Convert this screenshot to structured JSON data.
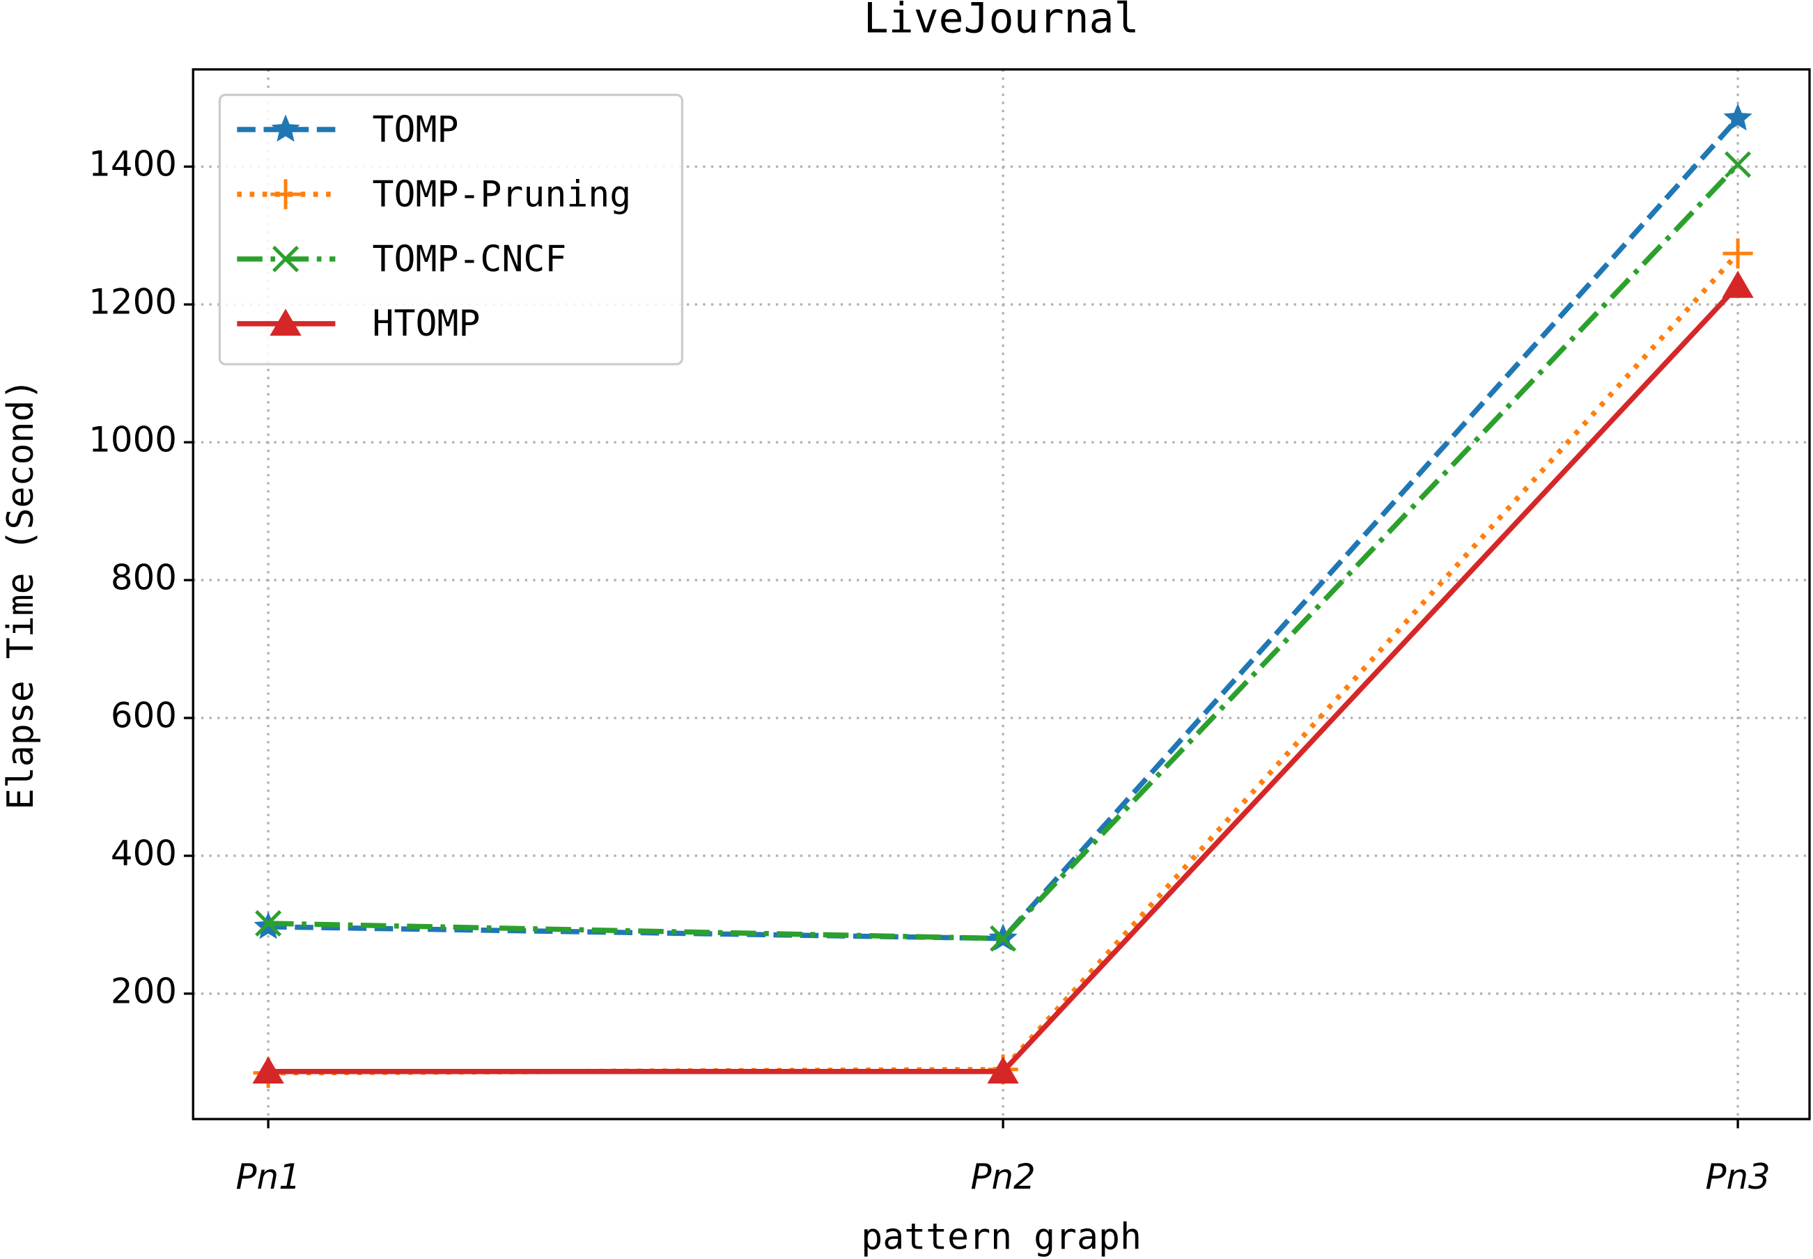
{
  "chart_data": {
    "type": "line",
    "title": "LiveJournal",
    "x_label": "pattern graph",
    "y_label": "Elapse Time (Second)",
    "categories": [
      "Pn1",
      "Pn2",
      "Pn3"
    ],
    "ylim": [
      18,
      1541
    ],
    "yticks": [
      200,
      400,
      600,
      800,
      1000,
      1200,
      1400
    ],
    "grid": true,
    "legend": "upper left",
    "series": [
      {
        "name": "TOMP",
        "color": "#1f77b4",
        "linestyle": "dashed",
        "marker": "star",
        "values": [
          297,
          280,
          1470
        ]
      },
      {
        "name": "TOMP-Pruning",
        "color": "#ff7f0e",
        "linestyle": "dotted",
        "marker": "plus",
        "values": [
          85,
          90,
          1274
        ]
      },
      {
        "name": "TOMP-CNCF",
        "color": "#2ca02c",
        "linestyle": "dashdot",
        "marker": "x",
        "values": [
          302,
          280,
          1403
        ]
      },
      {
        "name": "HTOMP",
        "color": "#d62728",
        "linestyle": "solid",
        "marker": "triangle",
        "values": [
          87,
          87,
          1227
        ]
      }
    ]
  }
}
